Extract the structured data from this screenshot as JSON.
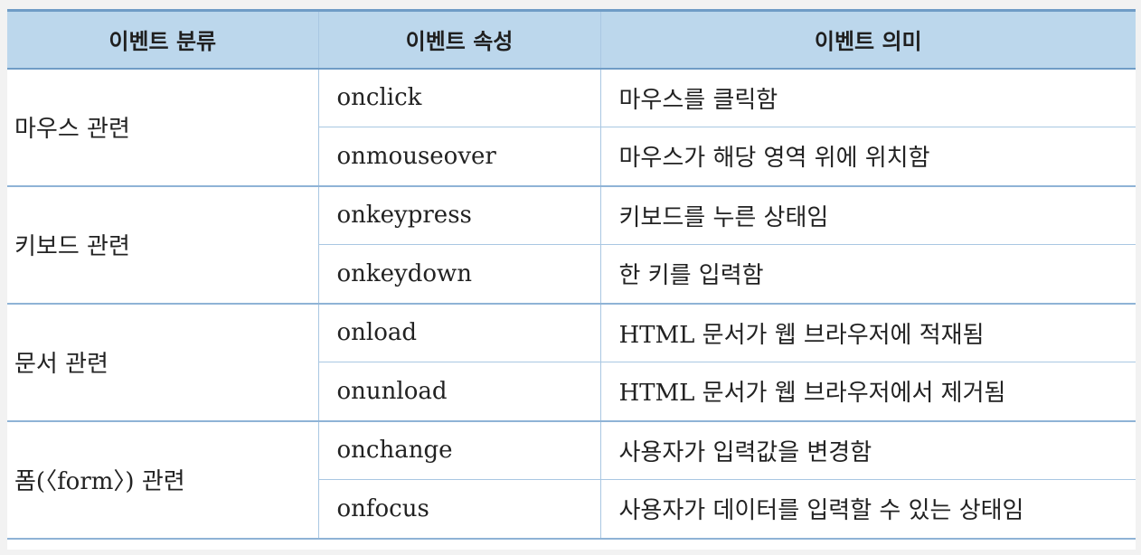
{
  "table": {
    "headers": [
      "이벤트 분류",
      "이벤트 속성",
      "이벤트 의미"
    ],
    "groups": [
      {
        "category": "마우스 관련",
        "rows": [
          {
            "attribute": "onclick",
            "meaning": "마우스를 클릭함"
          },
          {
            "attribute": "onmouseover",
            "meaning": "마우스가 해당 영역 위에 위치함"
          }
        ]
      },
      {
        "category": "키보드 관련",
        "rows": [
          {
            "attribute": "onkeypress",
            "meaning": "키보드를 누른 상태임"
          },
          {
            "attribute": "onkeydown",
            "meaning": "한 키를 입력함"
          }
        ]
      },
      {
        "category": "문서 관련",
        "rows": [
          {
            "attribute": "onload",
            "meaning": "HTML 문서가 웹 브라우저에 적재됨"
          },
          {
            "attribute": "onunload",
            "meaning": "HTML 문서가 웹 브라우저에서 제거됨"
          }
        ]
      },
      {
        "category": "폼(〈form〉) 관련",
        "rows": [
          {
            "attribute": "onchange",
            "meaning": "사용자가 입력값을 변경함"
          },
          {
            "attribute": "onfocus",
            "meaning": "사용자가 데이터를 입력할 수 있는 상태임"
          }
        ]
      }
    ]
  }
}
